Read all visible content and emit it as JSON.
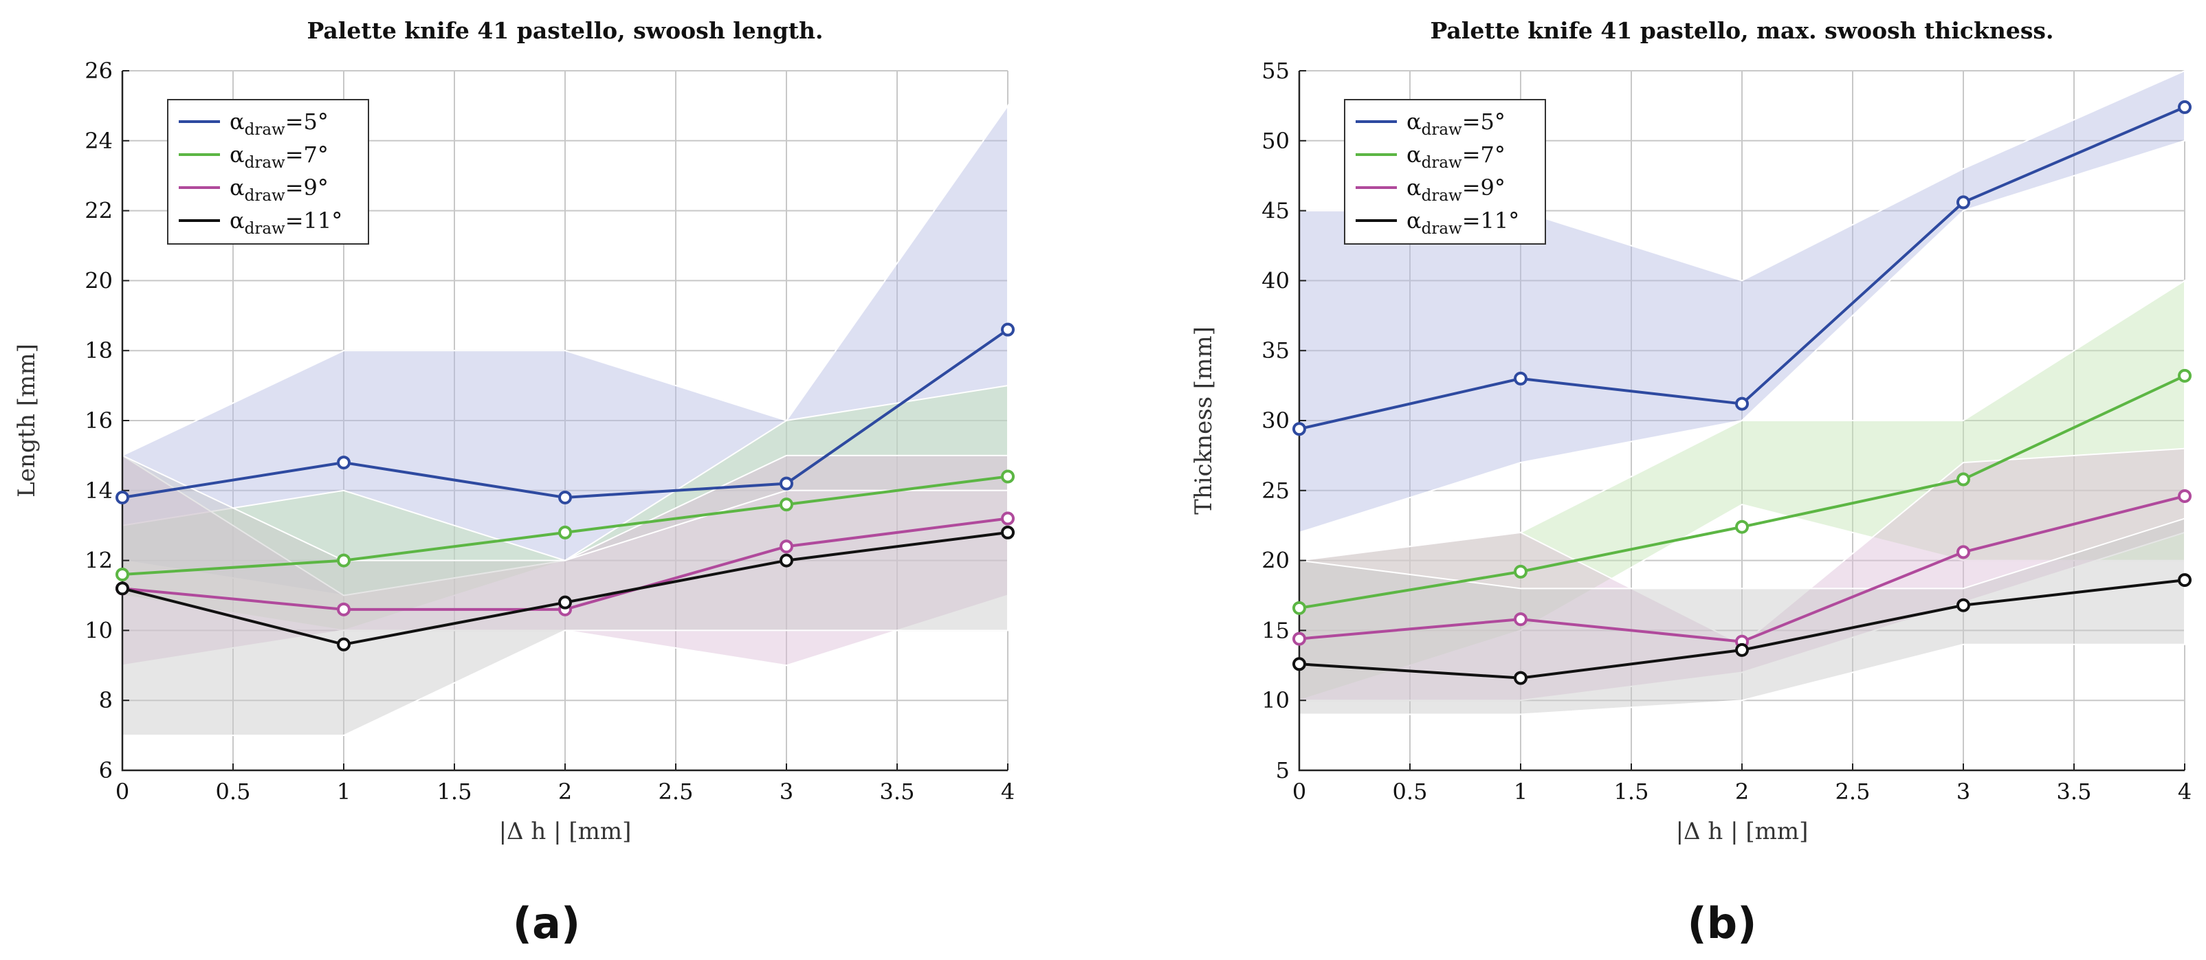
{
  "panel_labels": [
    "(a)",
    "(b)"
  ],
  "chart_data": [
    {
      "type": "line",
      "title": "Palette knife 41 pastello, swoosh length.",
      "xlabel": "|Δ h | [mm]",
      "ylabel": "Length [mm]",
      "xlim": [
        0,
        4
      ],
      "ylim": [
        6,
        26
      ],
      "xticks": [
        0,
        0.5,
        1,
        1.5,
        2,
        2.5,
        3,
        3.5,
        4
      ],
      "yticks": [
        6,
        8,
        10,
        12,
        14,
        16,
        18,
        20,
        22,
        24,
        26
      ],
      "grid": true,
      "legend_position": "top-left",
      "x": [
        0,
        1,
        2,
        3,
        4
      ],
      "series": [
        {
          "name": "α_draw=5°",
          "legend_main": "α",
          "legend_sub": "draw",
          "legend_tail": "=5°",
          "color": "#2e4aa0",
          "band_color": "#b4bae2",
          "values": [
            13.8,
            14.8,
            13.8,
            14.2,
            18.6
          ],
          "band_lower": [
            12,
            11,
            12,
            14,
            14
          ],
          "band_upper": [
            15,
            18,
            18,
            16,
            25
          ]
        },
        {
          "name": "α_draw=7°",
          "legend_main": "α",
          "legend_sub": "draw",
          "legend_tail": "=7°",
          "color": "#5cb644",
          "band_color": "#c4e4b4",
          "values": [
            11.6,
            12.0,
            12.8,
            13.6,
            14.4
          ],
          "band_lower": [
            11,
            10,
            12,
            14,
            14
          ],
          "band_upper": [
            13,
            14,
            12,
            16,
            17
          ]
        },
        {
          "name": "α_draw=9°",
          "legend_main": "α",
          "legend_sub": "draw",
          "legend_tail": "=9°",
          "color": "#b04a9c",
          "band_color": "#dcbcd8",
          "values": [
            11.2,
            10.6,
            10.6,
            12.4,
            13.2
          ],
          "band_lower": [
            9,
            10,
            10,
            9,
            11
          ],
          "band_upper": [
            15,
            11,
            12,
            15,
            15
          ]
        },
        {
          "name": "α_draw=11°",
          "legend_main": "α",
          "legend_sub": "draw",
          "legend_tail": "=11°",
          "color": "#111111",
          "band_color": "#c8c8c8",
          "values": [
            11.2,
            9.6,
            10.8,
            12.0,
            12.8
          ],
          "band_lower": [
            7,
            7,
            10,
            10,
            10
          ],
          "band_upper": [
            15,
            12,
            12,
            14,
            14
          ]
        }
      ]
    },
    {
      "type": "line",
      "title": "Palette knife 41 pastello, max. swoosh thickness.",
      "xlabel": "|Δ h | [mm]",
      "ylabel": "Thickness [mm]",
      "xlim": [
        0,
        4
      ],
      "ylim": [
        5,
        55
      ],
      "xticks": [
        0,
        0.5,
        1,
        1.5,
        2,
        2.5,
        3,
        3.5,
        4
      ],
      "yticks": [
        5,
        10,
        15,
        20,
        25,
        30,
        35,
        40,
        45,
        50,
        55
      ],
      "grid": true,
      "legend_position": "top-left",
      "x": [
        0,
        1,
        2,
        3,
        4
      ],
      "series": [
        {
          "name": "α_draw=5°",
          "legend_main": "α",
          "legend_sub": "draw",
          "legend_tail": "=5°",
          "color": "#2e4aa0",
          "band_color": "#b4bae2",
          "values": [
            29.4,
            33.0,
            31.2,
            45.6,
            52.4
          ],
          "band_lower": [
            22,
            27,
            30,
            45,
            50
          ],
          "band_upper": [
            45,
            45,
            40,
            48,
            55
          ]
        },
        {
          "name": "α_draw=7°",
          "legend_main": "α",
          "legend_sub": "draw",
          "legend_tail": "=7°",
          "color": "#5cb644",
          "band_color": "#c4e4b4",
          "values": [
            16.6,
            19.2,
            22.4,
            25.8,
            33.2
          ],
          "band_lower": [
            10,
            15,
            24,
            20,
            20
          ],
          "band_upper": [
            20,
            22,
            30,
            30,
            40
          ]
        },
        {
          "name": "α_draw=9°",
          "legend_main": "α",
          "legend_sub": "draw",
          "legend_tail": "=9°",
          "color": "#b04a9c",
          "band_color": "#dcbcd8",
          "values": [
            14.4,
            15.8,
            14.2,
            20.6,
            24.6
          ],
          "band_lower": [
            10,
            10,
            12,
            17,
            22
          ],
          "band_upper": [
            20,
            22,
            14,
            27,
            28
          ]
        },
        {
          "name": "α_draw=11°",
          "legend_main": "α",
          "legend_sub": "draw",
          "legend_tail": "=11°",
          "color": "#111111",
          "band_color": "#c8c8c8",
          "values": [
            12.6,
            11.6,
            13.6,
            16.8,
            18.6
          ],
          "band_lower": [
            9,
            9,
            10,
            14,
            14
          ],
          "band_upper": [
            20,
            18,
            18,
            18,
            23
          ]
        }
      ]
    }
  ]
}
